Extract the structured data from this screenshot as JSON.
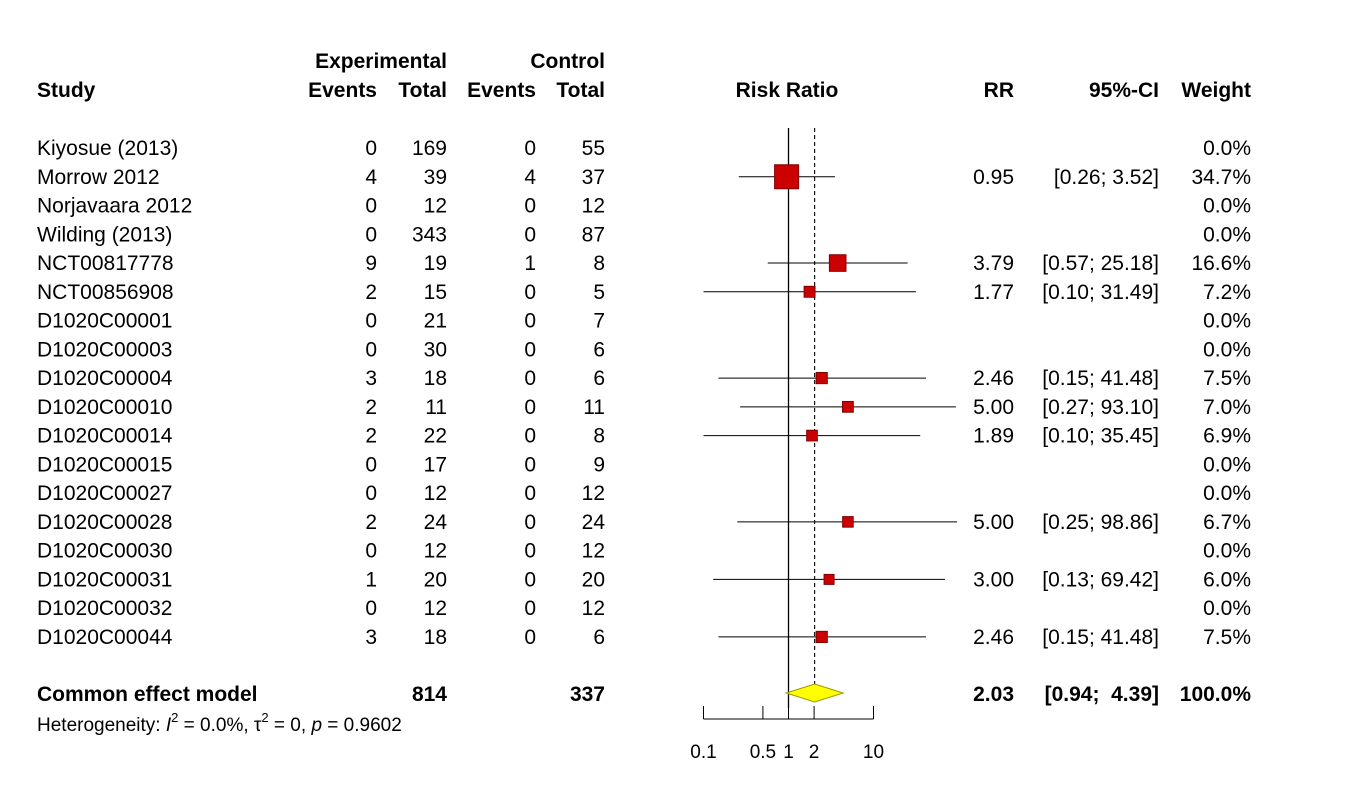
{
  "header": {
    "group1": "Experimental",
    "group2": "Control",
    "study": "Study",
    "events1": "Events",
    "total1": "Total",
    "events2": "Events",
    "total2": "Total",
    "plot_label": "Risk Ratio",
    "rr": "RR",
    "ci": "95%-CI",
    "weight": "Weight"
  },
  "studies": [
    {
      "study": "Kiyosue (2013)",
      "e_events": "0",
      "e_total": "169",
      "c_events": "0",
      "c_total": "55",
      "rr": "",
      "ci": "",
      "weight": "0.0%"
    },
    {
      "study": "Morrow 2012",
      "e_events": "4",
      "e_total": "39",
      "c_events": "4",
      "c_total": "37",
      "rr": "0.95",
      "ci": "[0.26;  3.52]",
      "weight": "34.7%"
    },
    {
      "study": "Norjavaara 2012",
      "e_events": "0",
      "e_total": "12",
      "c_events": "0",
      "c_total": "12",
      "rr": "",
      "ci": "",
      "weight": "0.0%"
    },
    {
      "study": "Wilding (2013)",
      "e_events": "0",
      "e_total": "343",
      "c_events": "0",
      "c_total": "87",
      "rr": "",
      "ci": "",
      "weight": "0.0%"
    },
    {
      "study": "NCT00817778",
      "e_events": "9",
      "e_total": "19",
      "c_events": "1",
      "c_total": "8",
      "rr": "3.79",
      "ci": "[0.57; 25.18]",
      "weight": "16.6%"
    },
    {
      "study": "NCT00856908",
      "e_events": "2",
      "e_total": "15",
      "c_events": "0",
      "c_total": "5",
      "rr": "1.77",
      "ci": "[0.10; 31.49]",
      "weight": "7.2%"
    },
    {
      "study": "D1020C00001",
      "e_events": "0",
      "e_total": "21",
      "c_events": "0",
      "c_total": "7",
      "rr": "",
      "ci": "",
      "weight": "0.0%"
    },
    {
      "study": "D1020C00003",
      "e_events": "0",
      "e_total": "30",
      "c_events": "0",
      "c_total": "6",
      "rr": "",
      "ci": "",
      "weight": "0.0%"
    },
    {
      "study": "D1020C00004",
      "e_events": "3",
      "e_total": "18",
      "c_events": "0",
      "c_total": "6",
      "rr": "2.46",
      "ci": "[0.15; 41.48]",
      "weight": "7.5%"
    },
    {
      "study": "D1020C00010",
      "e_events": "2",
      "e_total": "11",
      "c_events": "0",
      "c_total": "11",
      "rr": "5.00",
      "ci": "[0.27; 93.10]",
      "weight": "7.0%"
    },
    {
      "study": "D1020C00014",
      "e_events": "2",
      "e_total": "22",
      "c_events": "0",
      "c_total": "8",
      "rr": "1.89",
      "ci": "[0.10; 35.45]",
      "weight": "6.9%"
    },
    {
      "study": "D1020C00015",
      "e_events": "0",
      "e_total": "17",
      "c_events": "0",
      "c_total": "9",
      "rr": "",
      "ci": "",
      "weight": "0.0%"
    },
    {
      "study": "D1020C00027",
      "e_events": "0",
      "e_total": "12",
      "c_events": "0",
      "c_total": "12",
      "rr": "",
      "ci": "",
      "weight": "0.0%"
    },
    {
      "study": "D1020C00028",
      "e_events": "2",
      "e_total": "24",
      "c_events": "0",
      "c_total": "24",
      "rr": "5.00",
      "ci": "[0.25; 98.86]",
      "weight": "6.7%"
    },
    {
      "study": "D1020C00030",
      "e_events": "0",
      "e_total": "12",
      "c_events": "0",
      "c_total": "12",
      "rr": "",
      "ci": "",
      "weight": "0.0%"
    },
    {
      "study": "D1020C00031",
      "e_events": "1",
      "e_total": "20",
      "c_events": "0",
      "c_total": "20",
      "rr": "3.00",
      "ci": "[0.13; 69.42]",
      "weight": "6.0%"
    },
    {
      "study": "D1020C00032",
      "e_events": "0",
      "e_total": "12",
      "c_events": "0",
      "c_total": "12",
      "rr": "",
      "ci": "",
      "weight": "0.0%"
    },
    {
      "study": "D1020C00044",
      "e_events": "3",
      "e_total": "18",
      "c_events": "0",
      "c_total": "6",
      "rr": "2.46",
      "ci": "[0.15; 41.48]",
      "weight": "7.5%"
    }
  ],
  "pooled": {
    "label": "Common effect model",
    "e_total": "814",
    "c_total": "337",
    "rr": "2.03",
    "ci": "[0.94;  4.39]",
    "weight": "100.0%"
  },
  "heterogeneity": {
    "prefix": "Heterogeneity: ",
    "i_symbol": "I",
    "i_exp": "2",
    "i_value": " = 0.0%, ",
    "tau_symbol": "τ",
    "tau_exp": "2",
    "tau_value": " = 0, ",
    "p_symbol": "p",
    "p_value": " = 0.9602"
  },
  "chart_data": {
    "type": "forest",
    "xlabel": "",
    "scale": "log",
    "xlim": [
      0.1,
      10
    ],
    "ticks": [
      0.1,
      0.5,
      1,
      2,
      10
    ],
    "tick_labels": [
      "0.1",
      "0.5",
      "1",
      "2",
      "10"
    ],
    "null_value": 1,
    "pooled_estimate": 2.03,
    "estimates": [
      null,
      0.95,
      null,
      null,
      3.79,
      1.77,
      null,
      null,
      2.46,
      5.0,
      1.89,
      null,
      null,
      5.0,
      null,
      3.0,
      null,
      2.46
    ],
    "lower": [
      null,
      0.26,
      null,
      null,
      0.57,
      0.1,
      null,
      null,
      0.15,
      0.27,
      0.1,
      null,
      null,
      0.25,
      null,
      0.13,
      null,
      0.15
    ],
    "upper": [
      null,
      3.52,
      null,
      null,
      25.18,
      31.49,
      null,
      null,
      41.48,
      93.1,
      35.45,
      null,
      null,
      98.86,
      null,
      69.42,
      null,
      41.48
    ],
    "weights": [
      0.0,
      34.7,
      0.0,
      0.0,
      16.6,
      7.2,
      0.0,
      0.0,
      7.5,
      7.0,
      6.9,
      0.0,
      0.0,
      6.7,
      0.0,
      6.0,
      0.0,
      7.5
    ],
    "pooled": {
      "estimate": 2.03,
      "lower": 0.94,
      "upper": 4.39
    },
    "colors": {
      "square": "#cc0000",
      "square_border": "#800000",
      "diamond": "#ffff00",
      "diamond_border": "#999900",
      "line": "#000000"
    }
  }
}
